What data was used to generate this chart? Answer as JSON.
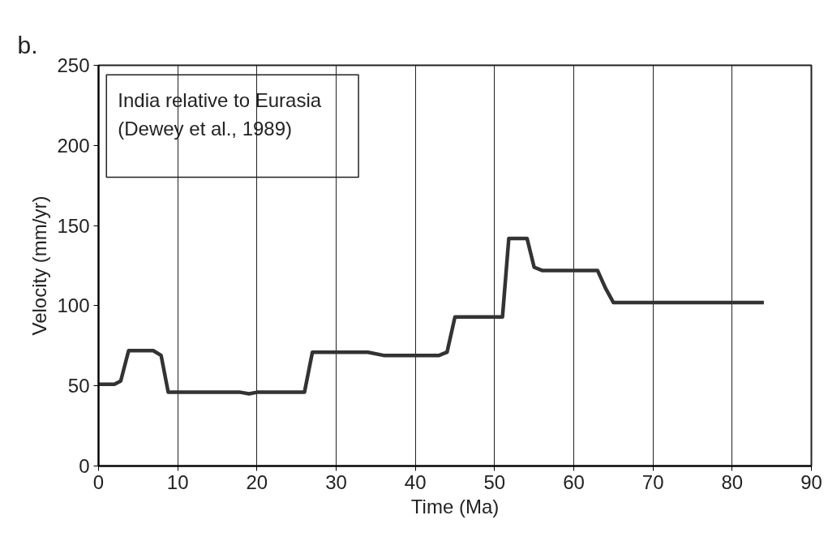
{
  "chart_data": {
    "type": "line",
    "xlabel": "Time (Ma)",
    "ylabel": "Velocity (mm/yr)",
    "annotations": [
      "b.",
      "India relative to Eurasia",
      "(Dewey et al., 1989)"
    ],
    "x": [
      0,
      2,
      2.8,
      3.8,
      6.9,
      7.9,
      8.8,
      17.9,
      19,
      20,
      26,
      27,
      34,
      36,
      43,
      44,
      45,
      51,
      51.8,
      54.1,
      55,
      56,
      63,
      64,
      65,
      84
    ],
    "series": [
      {
        "color": "#333333",
        "values": [
          51,
          51,
          53,
          72,
          72,
          69,
          46,
          46,
          45,
          46,
          46,
          71,
          71,
          69,
          69,
          71,
          93,
          93,
          142,
          142,
          124,
          122,
          122,
          111,
          102,
          102
        ]
      }
    ],
    "xlim": [
      0,
      90
    ],
    "ylim": [
      0,
      250
    ],
    "xticks": [
      0,
      10,
      20,
      30,
      40,
      50,
      60,
      70,
      80,
      90
    ],
    "yticks": [
      0,
      50,
      100,
      150,
      200,
      250
    ],
    "grid": "x",
    "marker": "none",
    "line_style": "solid"
  }
}
